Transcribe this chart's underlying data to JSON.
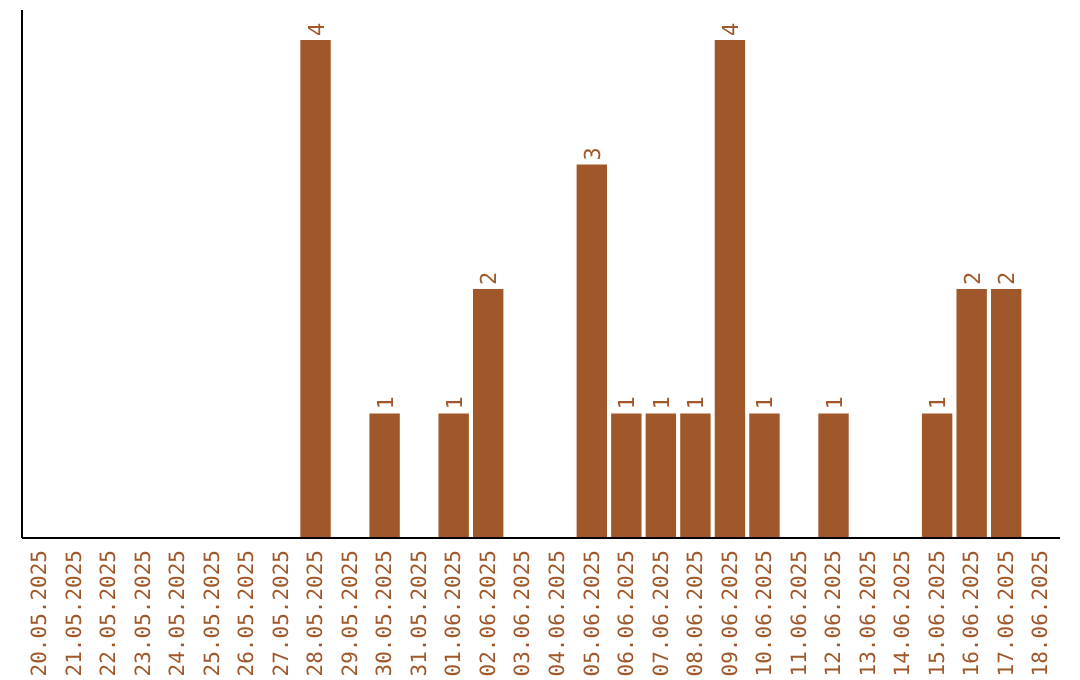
{
  "chart_data": {
    "type": "bar",
    "categories": [
      "20.05.2025",
      "21.05.2025",
      "22.05.2025",
      "23.05.2025",
      "24.05.2025",
      "25.05.2025",
      "26.05.2025",
      "27.05.2025",
      "28.05.2025",
      "29.05.2025",
      "30.05.2025",
      "31.05.2025",
      "01.06.2025",
      "02.06.2025",
      "03.06.2025",
      "04.06.2025",
      "05.06.2025",
      "06.06.2025",
      "07.06.2025",
      "08.06.2025",
      "09.06.2025",
      "10.06.2025",
      "11.06.2025",
      "12.06.2025",
      "13.06.2025",
      "14.06.2025",
      "15.06.2025",
      "16.06.2025",
      "17.06.2025",
      "18.06.2025"
    ],
    "values": [
      0,
      0,
      0,
      0,
      0,
      0,
      0,
      0,
      4,
      0,
      1,
      0,
      1,
      2,
      0,
      0,
      3,
      1,
      1,
      1,
      4,
      1,
      0,
      1,
      0,
      0,
      1,
      2,
      2,
      0
    ],
    "value_labels": [
      null,
      null,
      null,
      null,
      null,
      null,
      null,
      null,
      "4",
      null,
      "1",
      null,
      "1",
      "2",
      null,
      null,
      "3",
      "1",
      "1",
      "1",
      "4",
      "1",
      null,
      "1",
      null,
      null,
      "1",
      "2",
      "2",
      null
    ],
    "color": "#a0582a",
    "tick_labels": "x"
  }
}
